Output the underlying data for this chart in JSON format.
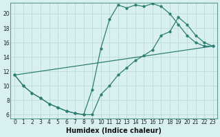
{
  "xlabel": "Humidex (Indice chaleur)",
  "bg_color": "#d8f0f0",
  "grid_color": "#c0dde0",
  "line_color": "#2e7d72",
  "xlim": [
    -0.5,
    23.5
  ],
  "ylim": [
    5.5,
    21.5
  ],
  "xticks": [
    0,
    1,
    2,
    3,
    4,
    5,
    6,
    7,
    8,
    9,
    10,
    11,
    12,
    13,
    14,
    15,
    16,
    17,
    18,
    19,
    20,
    21,
    22,
    23
  ],
  "yticks": [
    6,
    8,
    10,
    12,
    14,
    16,
    18,
    20
  ],
  "curve1_x": [
    0,
    1,
    2,
    3,
    4,
    5,
    6,
    7,
    8,
    9,
    10,
    11,
    12,
    13,
    14,
    15,
    16,
    17,
    18,
    19,
    20,
    21,
    22,
    23
  ],
  "curve1_y": [
    11.5,
    10.0,
    9.0,
    8.3,
    7.5,
    7.0,
    6.5,
    6.2,
    6.0,
    9.5,
    15.2,
    19.2,
    21.2,
    20.8,
    21.2,
    21.0,
    21.4,
    21.0,
    20.0,
    18.5,
    17.0,
    16.0,
    15.5,
    15.5
  ],
  "curve2_x": [
    0,
    1,
    2,
    3,
    4,
    5,
    6,
    7,
    8,
    9,
    10,
    11,
    12,
    13,
    14,
    15,
    16,
    17,
    18,
    19,
    20,
    21,
    22,
    23
  ],
  "curve2_y": [
    11.5,
    10.0,
    9.0,
    8.3,
    7.5,
    7.0,
    6.5,
    6.2,
    6.0,
    6.0,
    8.8,
    10.0,
    11.5,
    12.5,
    13.5,
    14.2,
    15.0,
    17.0,
    17.5,
    19.5,
    18.5,
    17.0,
    16.0,
    15.5
  ],
  "curve3_x": [
    0,
    23
  ],
  "curve3_y": [
    11.5,
    15.5
  ]
}
